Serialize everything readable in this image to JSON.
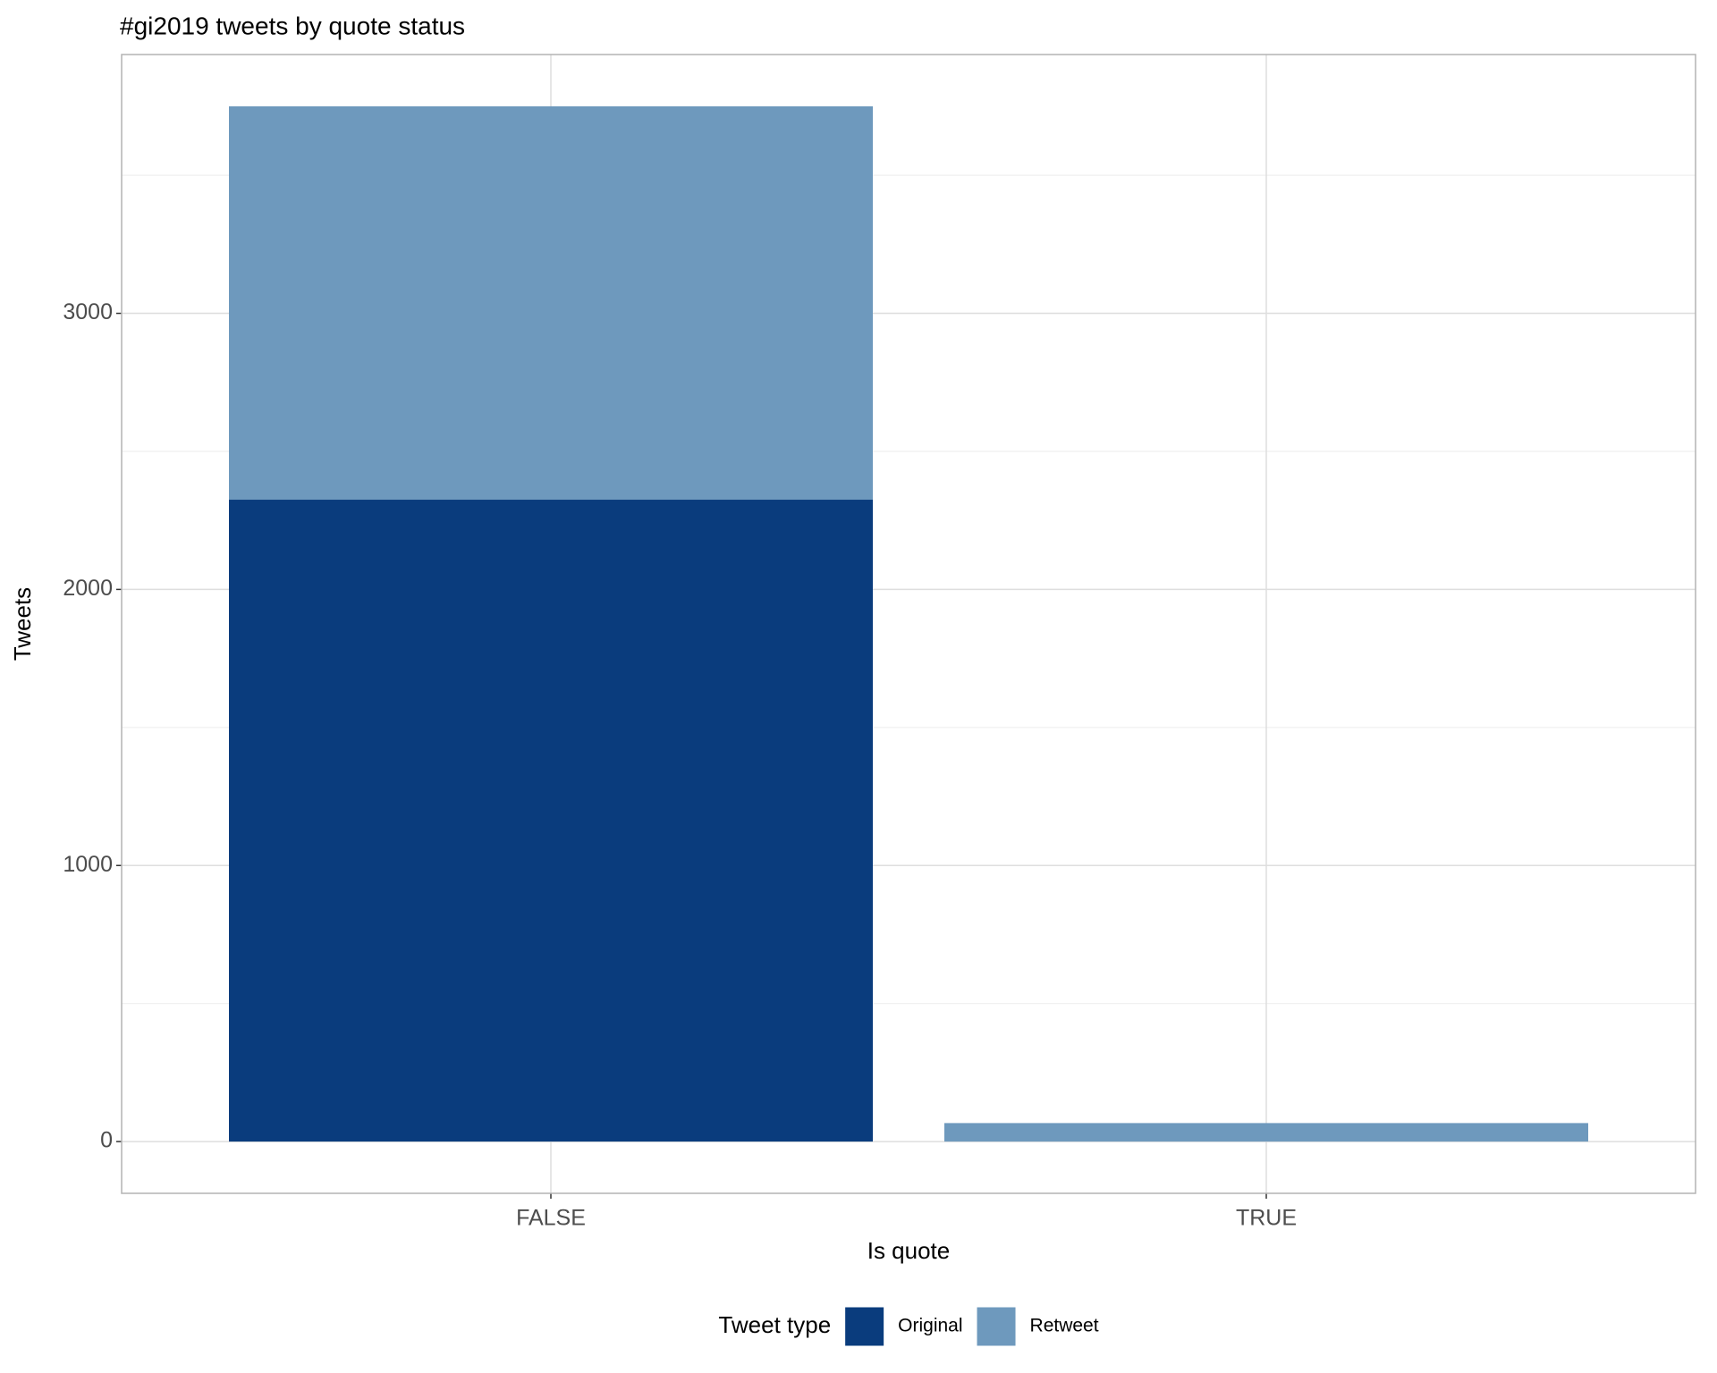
{
  "chart_data": {
    "type": "bar",
    "stacked": true,
    "title": "#gi2019 tweets by quote status",
    "x_label": "Is quote",
    "y_label": "Tweets",
    "categories": [
      "FALSE",
      "TRUE"
    ],
    "series": [
      {
        "name": "Original",
        "color": "#0a3c7d",
        "values": [
          2325,
          0
        ]
      },
      {
        "name": "Retweet",
        "color": "#6e99bd",
        "values": [
          1425,
          67
        ]
      }
    ],
    "ylim": [
      -187.5,
      3937.5
    ],
    "yticks": [
      0,
      1000,
      2000,
      3000
    ],
    "y_minor_ticks": [
      500,
      1500,
      2500,
      3500
    ],
    "grid": true,
    "legend_title": "Tweet type",
    "legend_position": "bottom"
  }
}
